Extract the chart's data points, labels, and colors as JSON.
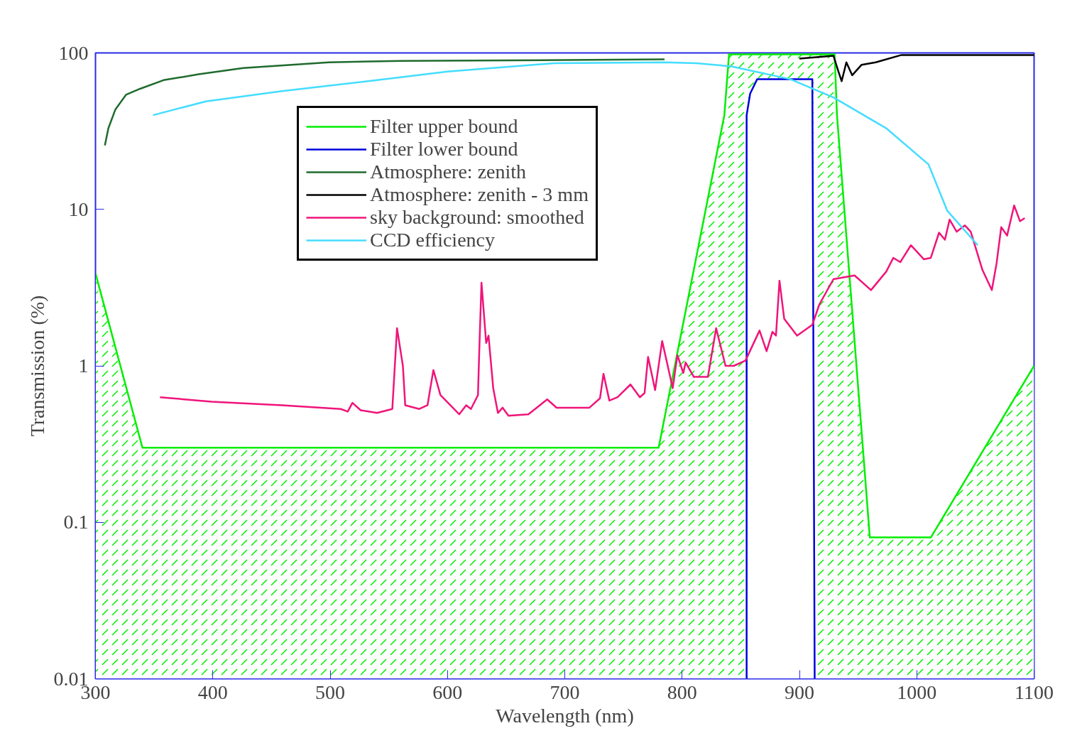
{
  "chart_data": {
    "type": "line",
    "xlabel": "Wavelength (nm)",
    "ylabel": "Transmission (%)",
    "xlim": [
      300,
      1100
    ],
    "xticks": [
      300,
      400,
      500,
      600,
      700,
      800,
      900,
      1000,
      1100
    ],
    "ylim": [
      0.01,
      100
    ],
    "yticks": [
      0.01,
      0.1,
      1,
      10,
      100
    ],
    "log": true,
    "grid": false,
    "legend": "top left",
    "marker": "none",
    "line_style": "solid",
    "series": [
      {
        "name": "Filter upper bound",
        "type": "area",
        "color": "#00ee00",
        "x": [
          300,
          340,
          780,
          836,
          840,
          930,
          932,
          960,
          1012,
          1100
        ],
        "values": [
          3.9,
          0.3,
          0.3,
          40,
          98,
          98,
          40,
          0.08,
          0.08,
          1
        ]
      },
      {
        "name": "Filter lower bound",
        "color": "#0000dd",
        "x": [
          855,
          855,
          858,
          864,
          911,
          913
        ],
        "values": [
          0.01,
          40,
          55,
          68,
          68,
          0.01
        ]
      },
      {
        "name": "Atmosphere: zenith",
        "type": "line",
        "color": "#1f6b2e",
        "x": [
          308,
          311,
          317,
          326,
          338,
          358,
          388,
          426,
          499,
          560,
          700,
          785
        ],
        "values": [
          25.6,
          33,
          43.6,
          54,
          59,
          67,
          73,
          80,
          87,
          89,
          90,
          91
        ]
      },
      {
        "name": "Atmosphere: zenith - 3 mm",
        "type": "line",
        "color": "#000000",
        "x": [
          900,
          929,
          933,
          936,
          940,
          945,
          953,
          965,
          987,
          1100
        ],
        "values": [
          92,
          96,
          77,
          66,
          87,
          72,
          84,
          87,
          97,
          97
        ]
      },
      {
        "name": "sky background: smoothed",
        "type": "line",
        "color": "#f0147a",
        "x": [
          355,
          399,
          459,
          509,
          515,
          519,
          526,
          540,
          553,
          557,
          562,
          564,
          576,
          583,
          588,
          594,
          610,
          616,
          620,
          626,
          627,
          629,
          633,
          635,
          639,
          643,
          647,
          652,
          669,
          685,
          693,
          721,
          730,
          733,
          738,
          745,
          756,
          764,
          768,
          771,
          777,
          783,
          792,
          796,
          801,
          803,
          810,
          822,
          829,
          837,
          844,
          854,
          866,
          872,
          877,
          880,
          883,
          887,
          898,
          911,
          917,
          929,
          947,
          961,
          974,
          980,
          986,
          995,
          1006,
          1012,
          1019,
          1024,
          1028,
          1034,
          1041,
          1046,
          1056,
          1064,
          1068,
          1072,
          1077,
          1083,
          1088,
          1092
        ],
        "values": [
          0.63,
          0.59,
          0.56,
          0.53,
          0.51,
          0.58,
          0.52,
          0.5,
          0.53,
          1.74,
          1.0,
          0.56,
          0.53,
          0.56,
          0.94,
          0.65,
          0.49,
          0.56,
          0.53,
          0.65,
          1.17,
          3.4,
          1.4,
          1.56,
          0.72,
          0.5,
          0.54,
          0.48,
          0.49,
          0.61,
          0.54,
          0.54,
          0.62,
          0.89,
          0.6,
          0.63,
          0.76,
          0.63,
          0.67,
          1.14,
          0.7,
          1.44,
          0.72,
          1.17,
          0.9,
          1.05,
          0.85,
          0.85,
          1.74,
          1.0,
          1.0,
          1.08,
          1.68,
          1.24,
          1.65,
          1.56,
          3.5,
          2.0,
          1.56,
          1.83,
          2.47,
          3.58,
          3.78,
          3.05,
          4.0,
          4.9,
          4.6,
          5.9,
          4.8,
          4.9,
          7.1,
          6.4,
          8.6,
          7.2,
          7.9,
          7.2,
          4.1,
          3.05,
          4.5,
          7.7,
          6.8,
          10.6,
          8.4,
          8.8
        ]
      },
      {
        "name": "CCD efficiency",
        "type": "line",
        "color": "#44ddff",
        "x": [
          349,
          394,
          459,
          540,
          600,
          691,
          785,
          812,
          842,
          892,
          929,
          974,
          1010,
          1026,
          1052
        ],
        "values": [
          40,
          49,
          57,
          67,
          76,
          86,
          87,
          86,
          82,
          68,
          52,
          33,
          19.4,
          9.8,
          5.9
        ]
      }
    ]
  }
}
